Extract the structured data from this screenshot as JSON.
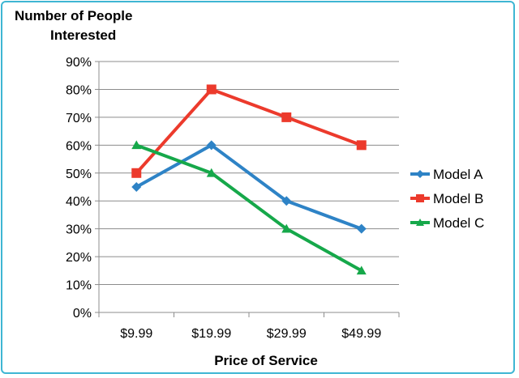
{
  "chart_data": {
    "type": "line",
    "title_lines": [
      "Number of People",
      "Interested"
    ],
    "xlabel": "Price of Service",
    "categories": [
      "$9.99",
      "$19.99",
      "$29.99",
      "$49.99"
    ],
    "ylim": [
      0,
      90
    ],
    "yticks": [
      "0%",
      "10%",
      "20%",
      "30%",
      "40%",
      "50%",
      "60%",
      "70%",
      "80%",
      "90%"
    ],
    "grid": true,
    "legend_position": "right",
    "series": [
      {
        "name": "Model A",
        "values": [
          45,
          60,
          40,
          30
        ],
        "color": "#2e83c6",
        "marker": "diamond"
      },
      {
        "name": "Model B",
        "values": [
          50,
          80,
          70,
          60
        ],
        "color": "#ec3a2c",
        "marker": "square"
      },
      {
        "name": "Model C",
        "values": [
          60,
          50,
          30,
          15
        ],
        "color": "#16a84a",
        "marker": "triangle"
      }
    ]
  }
}
